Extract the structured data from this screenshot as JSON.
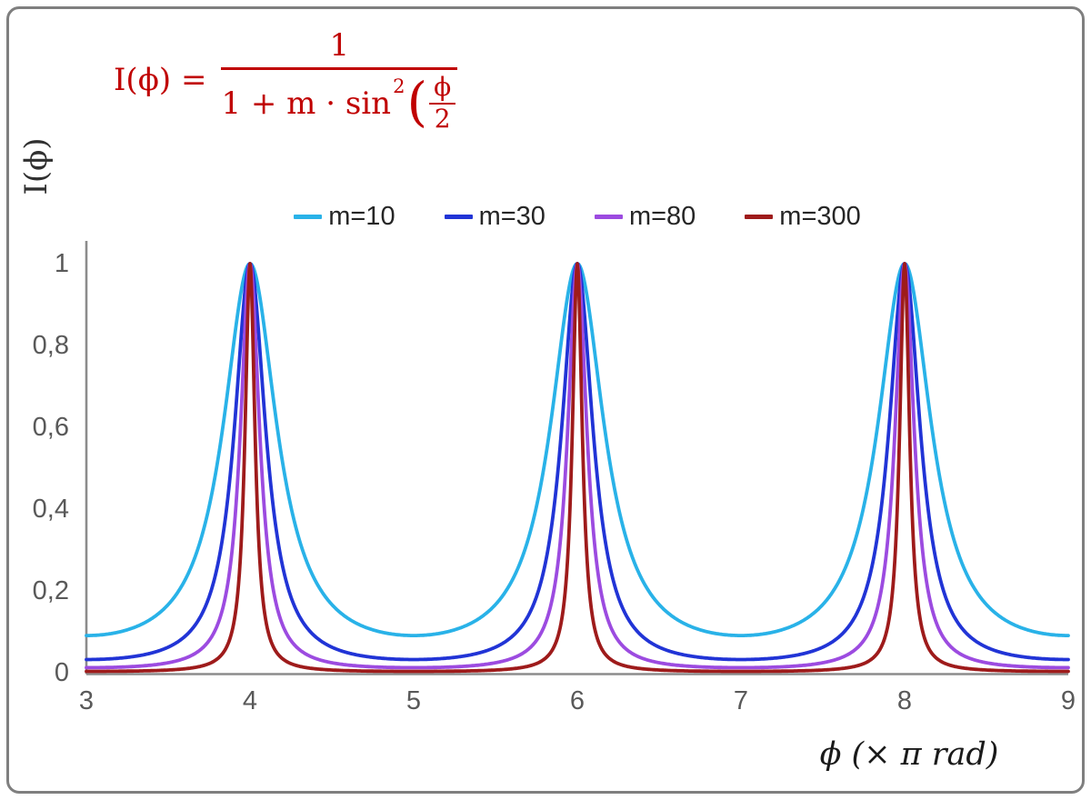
{
  "chart_data": {
    "type": "line",
    "title": "",
    "xlabel": "ϕ  (× π rad)",
    "ylabel": "I(ϕ)",
    "x_range": [
      3,
      9
    ],
    "y_range": [
      0,
      1
    ],
    "x_ticks": [
      3,
      4,
      5,
      6,
      7,
      8,
      9
    ],
    "x_tick_labels": [
      "3",
      "4",
      "5",
      "6",
      "7",
      "8",
      "9"
    ],
    "y_ticks": [
      0,
      0.2,
      0.4,
      0.6,
      0.8,
      1
    ],
    "y_tick_labels": [
      "0",
      "0,2",
      "0,4",
      "0,6",
      "0,8",
      "1"
    ],
    "function": "I(x) = 1 / (1 + m * sin^2(pi*x/2)), x expressed in units of pi rad",
    "peaks_x": [
      4,
      6,
      8
    ],
    "peak_value": 1,
    "grid": false,
    "legend_position": "top-center",
    "series": [
      {
        "name": "m=10",
        "m": 10,
        "color": "#29B2E8"
      },
      {
        "name": "m=30",
        "m": 30,
        "color": "#2134D6"
      },
      {
        "name": "m=80",
        "m": 80,
        "color": "#9C4BE0"
      },
      {
        "name": "m=300",
        "m": 300,
        "color": "#9E1B1B"
      }
    ],
    "axis_color": "#8C8C8C",
    "tick_label_color": "#595959",
    "frame_color": "#7F7F7F"
  },
  "formula": {
    "lhs": "I(ϕ) =",
    "numerator": "1",
    "denominator_text": "1 + m · sin",
    "exponent": "2",
    "open_paren": "(",
    "inner_numerator": "ϕ",
    "inner_denominator": "2",
    "color": "#C00000"
  }
}
